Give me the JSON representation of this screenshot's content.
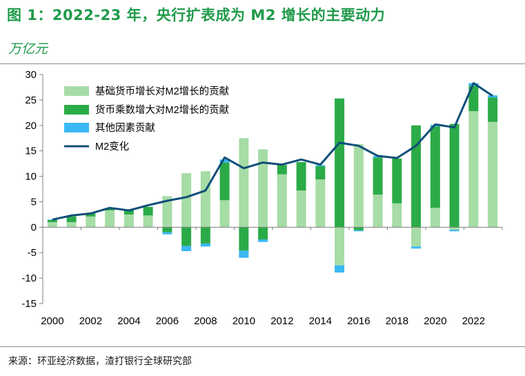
{
  "header": {
    "title": "图 1：2022-23 年，央行扩表成为 M2 增长的主要动力",
    "unit": "万亿元"
  },
  "footer": {
    "source": "来源：环亚经济数据，渣打银行全球研究部"
  },
  "colors": {
    "base": "#a6dca5",
    "multiplier": "#2bab48",
    "other": "#3ab8f4",
    "line": "#0f4e79",
    "axis": "#808080",
    "title": "#1f9a4a"
  },
  "chart_data": {
    "type": "bar",
    "stacked": true,
    "title": "2022-23 年，央行扩表成为 M2 增长的主要动力",
    "ylabel": "万亿元",
    "xlabel": "",
    "ylim": [
      -15,
      30
    ],
    "yticks": [
      30,
      25,
      20,
      15,
      10,
      5,
      0,
      -5,
      -10,
      -15
    ],
    "x_tick_labels": [
      "2000",
      "2002",
      "2004",
      "2006",
      "2008",
      "2010",
      "2012",
      "2014",
      "2016",
      "2018",
      "2020",
      "2022"
    ],
    "categories": [
      "2000",
      "2001",
      "2002",
      "2003",
      "2004",
      "2005",
      "2006",
      "2007",
      "2008",
      "2009",
      "2010",
      "2011",
      "2012",
      "2013",
      "2014",
      "2015",
      "2016",
      "2017",
      "2018",
      "2019",
      "2020",
      "2021",
      "2022",
      "2023"
    ],
    "legend_position": "top-left",
    "series": [
      {
        "name": "基础货币增长对M2增长的贡献",
        "kind": "bar",
        "values": [
          1.0,
          1.0,
          2.1,
          3.3,
          2.5,
          2.3,
          6.1,
          10.6,
          11.0,
          5.3,
          17.5,
          15.3,
          10.4,
          7.2,
          9.4,
          -7.5,
          16.3,
          6.4,
          4.7,
          -3.8,
          3.8,
          -0.5,
          22.8,
          20.7
        ]
      },
      {
        "name": "货币乘数增大对M2增长的贡献",
        "kind": "bar",
        "values": [
          0.4,
          1.1,
          0.6,
          0.4,
          0.8,
          1.7,
          -1.0,
          -3.7,
          -3.2,
          7.4,
          -4.6,
          -2.4,
          1.8,
          5.6,
          2.6,
          25.3,
          -0.6,
          7.3,
          8.8,
          20.0,
          16.0,
          20.3,
          5.0,
          4.8
        ]
      },
      {
        "name": "其他因素贡献",
        "kind": "bar",
        "values": [
          0.1,
          0.0,
          0.0,
          0.1,
          0.0,
          0.0,
          -0.4,
          -1.0,
          -0.6,
          0.6,
          -1.4,
          -0.5,
          0.0,
          0.0,
          0.2,
          -1.4,
          -0.2,
          0.3,
          0.0,
          -0.4,
          0.3,
          -0.3,
          0.5,
          0.4
        ]
      },
      {
        "name": "M2变化",
        "kind": "line",
        "values": [
          1.5,
          2.3,
          2.7,
          3.8,
          3.3,
          4.3,
          5.2,
          5.9,
          7.2,
          13.7,
          11.6,
          12.7,
          12.3,
          13.3,
          12.3,
          16.6,
          16.0,
          14.0,
          13.6,
          16.0,
          20.2,
          19.6,
          28.3,
          25.8
        ]
      }
    ]
  }
}
